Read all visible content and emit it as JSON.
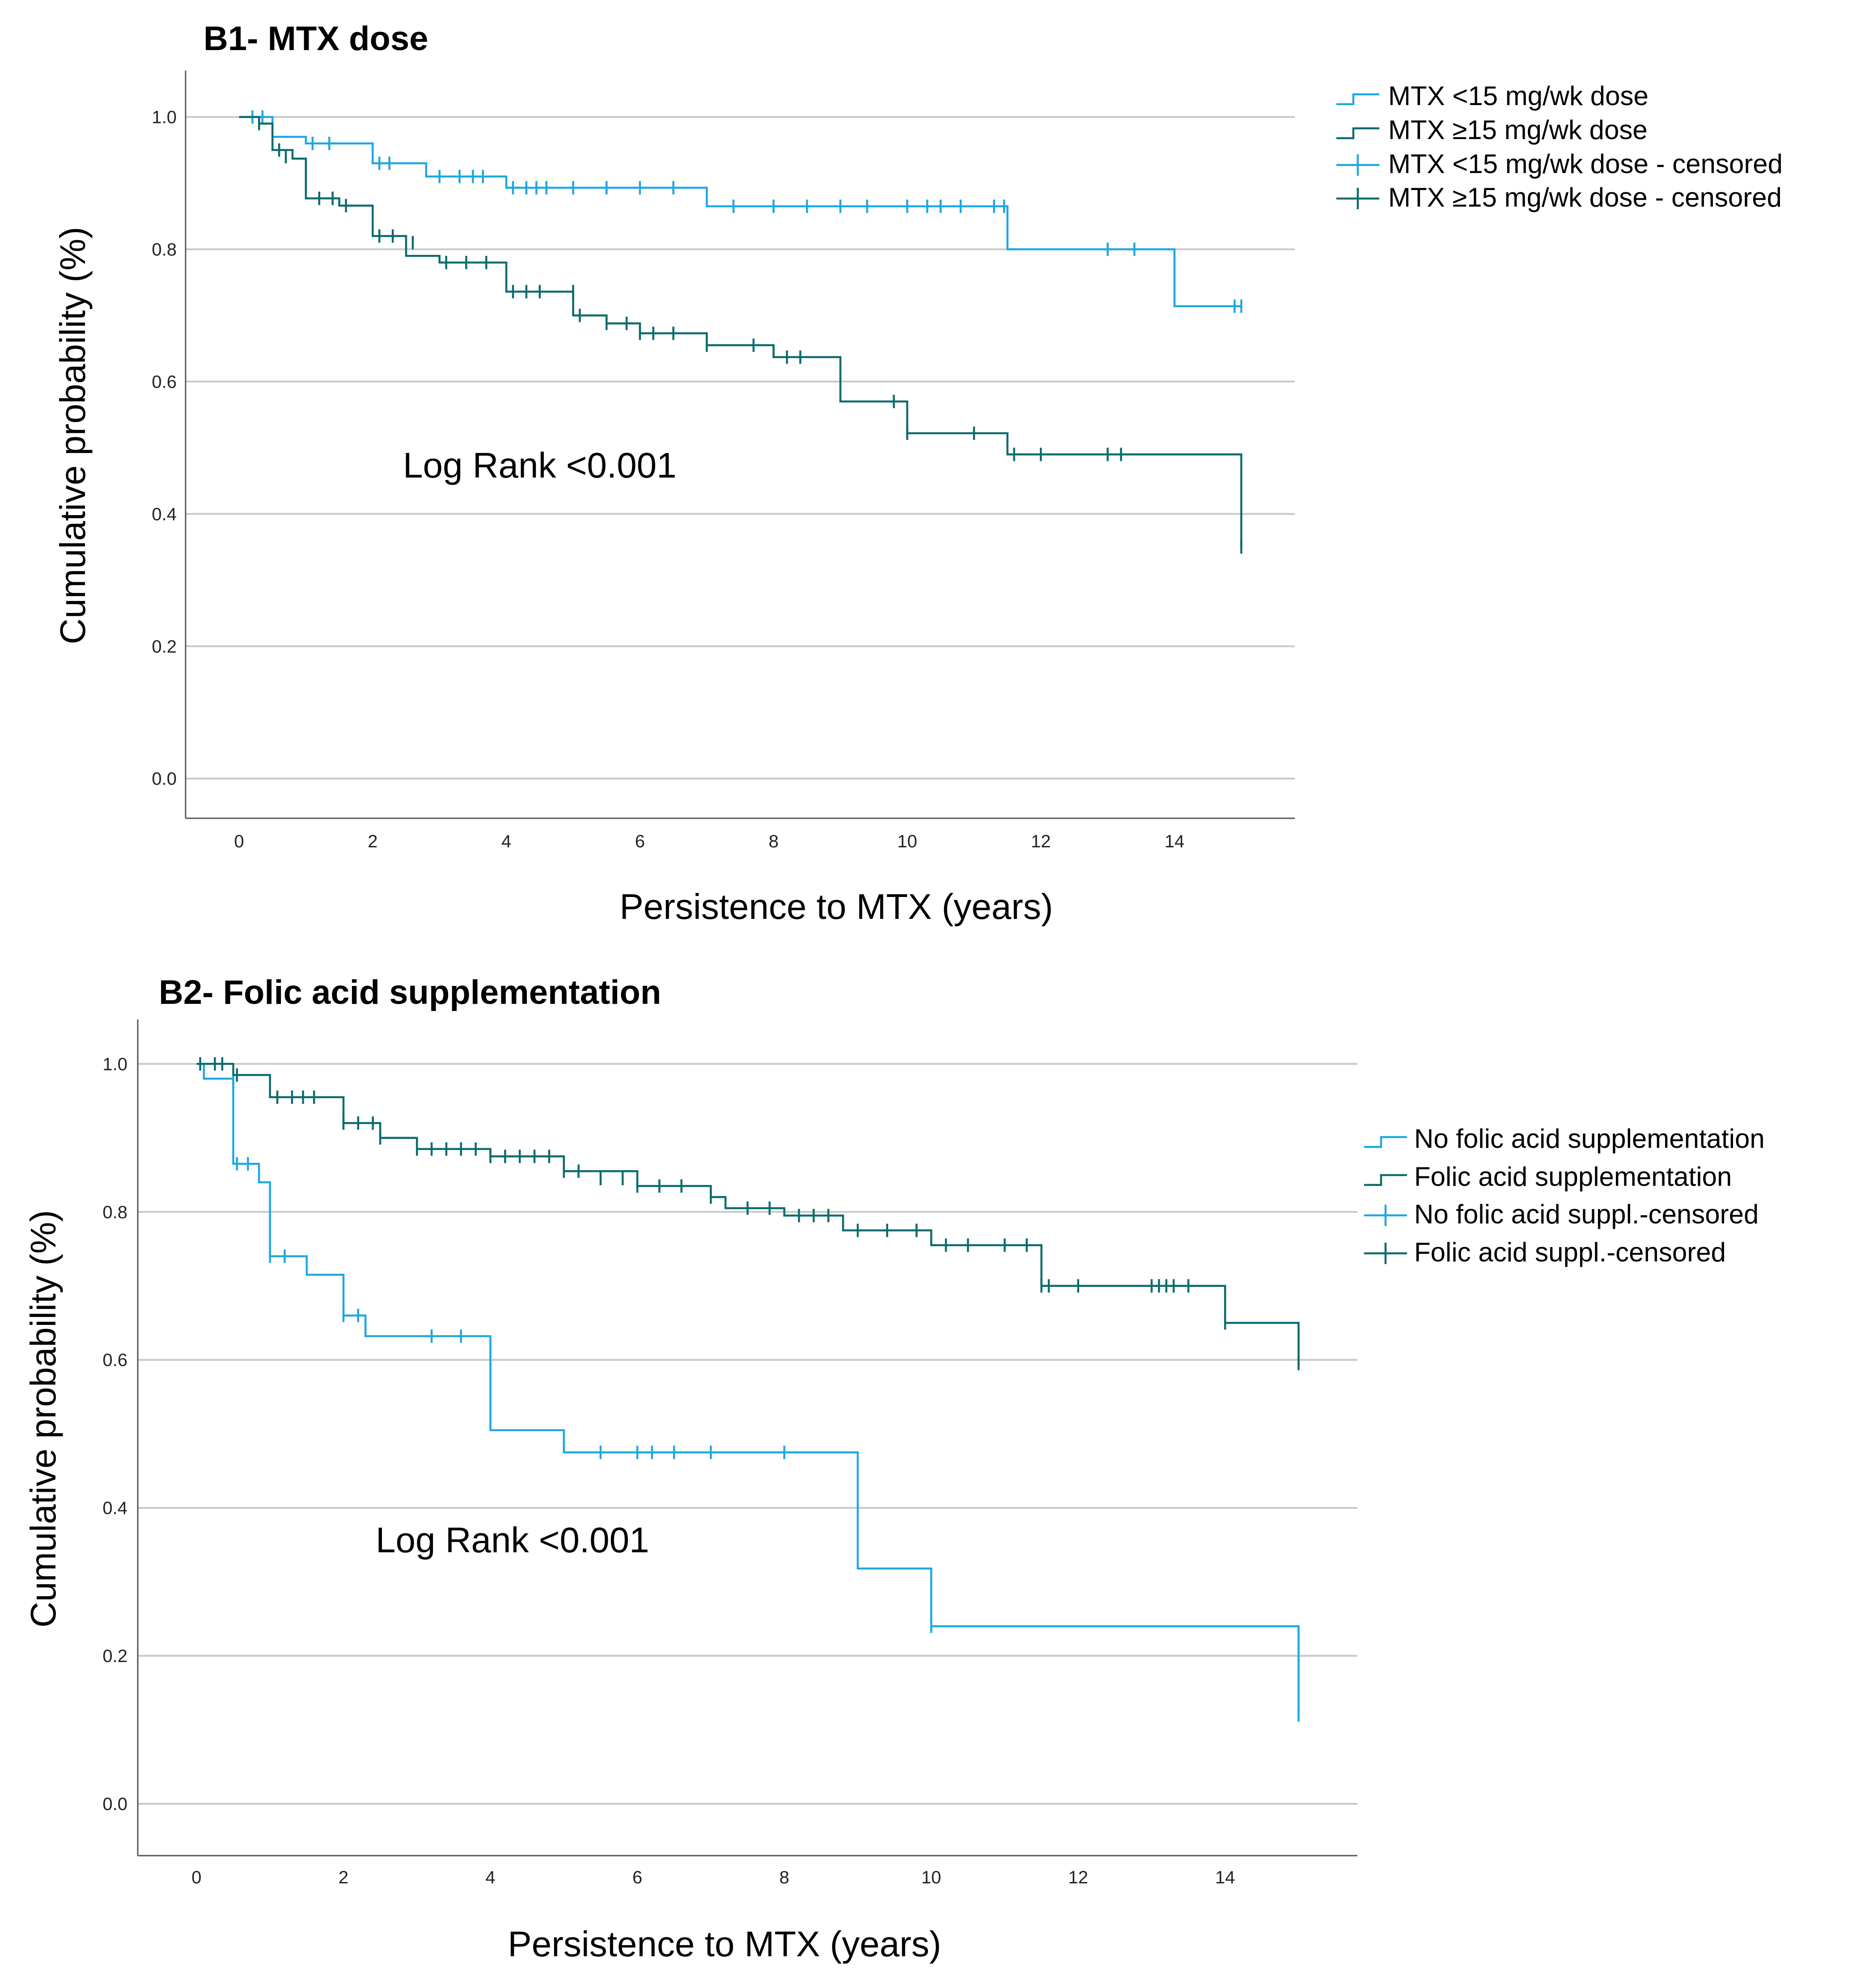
{
  "colors": {
    "series_light": "#1ea7e1",
    "series_dark": "#0b6b6e",
    "gridline": "#c8c8c8",
    "axis": "#555555"
  },
  "chart_data": [
    {
      "type": "line",
      "title": "B1- MTX dose",
      "xlabel": "Persistence to MTX (years)",
      "ylabel": "Cumulative probability (%)",
      "xlim": [
        -0.8,
        15.8
      ],
      "ylim": [
        -0.06,
        1.07
      ],
      "xticks": [
        0,
        2,
        4,
        6,
        8,
        10,
        12,
        14
      ],
      "xtick_labels": [
        "0",
        "2",
        "4",
        "6",
        "8",
        "10",
        "12",
        "14"
      ],
      "yticks": [
        0.0,
        0.2,
        0.4,
        0.6,
        0.8,
        1.0
      ],
      "ytick_labels": [
        "0.0",
        "0.2",
        "0.4",
        "0.6",
        "0.8",
        "1.0"
      ],
      "grid": true,
      "legend_position": "top-right outside",
      "annotation": {
        "text": "Log Rank <0.001",
        "x": 4.5,
        "y": 0.455
      },
      "legend": [
        {
          "label": "MTX <15 mg/wk dose",
          "kind": "line",
          "color": "#1ea7e1"
        },
        {
          "label": "MTX ≥15 mg/wk dose",
          "kind": "line",
          "color": "#0b6b6e"
        },
        {
          "label": "MTX <15 mg/wk dose - censored",
          "kind": "censor",
          "color": "#1ea7e1"
        },
        {
          "label": "MTX ≥15 mg/wk dose - censored",
          "kind": "censor",
          "color": "#0b6b6e"
        }
      ],
      "series": [
        {
          "name": "MTX <15 mg/wk dose",
          "color": "#1ea7e1",
          "steps": [
            [
              0,
              1.0
            ],
            [
              0.5,
              0.97
            ],
            [
              1.0,
              0.96
            ],
            [
              2.0,
              0.93
            ],
            [
              2.8,
              0.91
            ],
            [
              4.0,
              0.893
            ],
            [
              7.0,
              0.865
            ],
            [
              11.5,
              0.8
            ],
            [
              14.0,
              0.714
            ],
            [
              15.0,
              0.714
            ]
          ],
          "censored": [
            [
              0.2,
              1.0
            ],
            [
              0.35,
              1.0
            ],
            [
              1.1,
              0.96
            ],
            [
              1.35,
              0.96
            ],
            [
              2.1,
              0.93
            ],
            [
              2.25,
              0.93
            ],
            [
              3.0,
              0.91
            ],
            [
              3.3,
              0.91
            ],
            [
              3.5,
              0.91
            ],
            [
              3.65,
              0.91
            ],
            [
              4.1,
              0.893
            ],
            [
              4.3,
              0.893
            ],
            [
              4.45,
              0.893
            ],
            [
              4.6,
              0.893
            ],
            [
              5.0,
              0.893
            ],
            [
              5.5,
              0.893
            ],
            [
              6.0,
              0.893
            ],
            [
              6.5,
              0.893
            ],
            [
              7.4,
              0.865
            ],
            [
              8.0,
              0.865
            ],
            [
              8.5,
              0.865
            ],
            [
              9.0,
              0.865
            ],
            [
              9.4,
              0.865
            ],
            [
              10.0,
              0.865
            ],
            [
              10.3,
              0.865
            ],
            [
              10.5,
              0.865
            ],
            [
              10.8,
              0.865
            ],
            [
              11.3,
              0.865
            ],
            [
              11.45,
              0.865
            ],
            [
              13.0,
              0.8
            ],
            [
              13.4,
              0.8
            ],
            [
              14.9,
              0.714
            ],
            [
              15.0,
              0.714
            ]
          ]
        },
        {
          "name": "MTX ≥15 mg/wk dose",
          "color": "#0b6b6e",
          "steps": [
            [
              0,
              1.0
            ],
            [
              0.3,
              0.99
            ],
            [
              0.5,
              0.95
            ],
            [
              0.8,
              0.937
            ],
            [
              1.0,
              0.877
            ],
            [
              1.5,
              0.866
            ],
            [
              2.0,
              0.82
            ],
            [
              2.5,
              0.79
            ],
            [
              3.0,
              0.78
            ],
            [
              4.0,
              0.736
            ],
            [
              5.0,
              0.7
            ],
            [
              5.5,
              0.688
            ],
            [
              6.0,
              0.673
            ],
            [
              7.0,
              0.655
            ],
            [
              8.0,
              0.637
            ],
            [
              9.0,
              0.57
            ],
            [
              10.0,
              0.522
            ],
            [
              11.5,
              0.49
            ],
            [
              15.0,
              0.35
            ]
          ],
          "censored": [
            [
              0.3,
              0.99
            ],
            [
              0.6,
              0.95
            ],
            [
              0.7,
              0.94
            ],
            [
              1.2,
              0.877
            ],
            [
              1.4,
              0.877
            ],
            [
              1.6,
              0.866
            ],
            [
              2.1,
              0.82
            ],
            [
              2.3,
              0.82
            ],
            [
              2.6,
              0.81
            ],
            [
              3.1,
              0.78
            ],
            [
              3.4,
              0.78
            ],
            [
              3.7,
              0.78
            ],
            [
              4.1,
              0.736
            ],
            [
              4.3,
              0.736
            ],
            [
              4.5,
              0.736
            ],
            [
              5.0,
              0.736
            ],
            [
              5.1,
              0.7
            ],
            [
              5.5,
              0.688
            ],
            [
              5.8,
              0.688
            ],
            [
              6.0,
              0.673
            ],
            [
              6.2,
              0.673
            ],
            [
              6.5,
              0.673
            ],
            [
              7.0,
              0.655
            ],
            [
              7.7,
              0.655
            ],
            [
              8.2,
              0.637
            ],
            [
              8.4,
              0.637
            ],
            [
              9.8,
              0.57
            ],
            [
              10.0,
              0.522
            ],
            [
              11.0,
              0.522
            ],
            [
              11.6,
              0.49
            ],
            [
              12.0,
              0.49
            ],
            [
              13.0,
              0.49
            ],
            [
              13.2,
              0.49
            ],
            [
              15.0,
              0.35
            ]
          ]
        }
      ]
    },
    {
      "type": "line",
      "title": "B2- Folic acid supplementation",
      "xlabel": "Persistence to MTX (years)",
      "ylabel": "Cumulative probability (%)",
      "xlim": [
        -0.8,
        15.8
      ],
      "ylim": [
        -0.07,
        1.06
      ],
      "xticks": [
        0,
        2,
        4,
        6,
        8,
        10,
        12,
        14
      ],
      "xtick_labels": [
        "0",
        "2",
        "4",
        "6",
        "8",
        "10",
        "12",
        "14"
      ],
      "yticks": [
        0.0,
        0.2,
        0.4,
        0.6,
        0.8,
        1.0
      ],
      "ytick_labels": [
        "0.0",
        "0.2",
        "0.4",
        "0.6",
        "0.8",
        "1.0"
      ],
      "grid": true,
      "legend_position": "right outside",
      "annotation": {
        "text": "Log Rank <0.001",
        "x": 4.3,
        "y": 0.34
      },
      "legend": [
        {
          "label": "No folic acid supplementation",
          "kind": "line",
          "color": "#1ea7e1"
        },
        {
          "label": "Folic acid supplementation",
          "kind": "line",
          "color": "#0b6b6e"
        },
        {
          "label": "No folic acid suppl.-censored",
          "kind": "censor",
          "color": "#1ea7e1"
        },
        {
          "label": "Folic acid suppl.-censored",
          "kind": "censor",
          "color": "#0b6b6e"
        }
      ],
      "series": [
        {
          "name": "No folic acid supplementation",
          "color": "#1ea7e1",
          "steps": [
            [
              0,
              1.0
            ],
            [
              0.1,
              0.98
            ],
            [
              0.5,
              0.975
            ],
            [
              0.5,
              0.865
            ],
            [
              0.85,
              0.84
            ],
            [
              1.0,
              0.74
            ],
            [
              1.5,
              0.715
            ],
            [
              2.0,
              0.69
            ],
            [
              2.0,
              0.66
            ],
            [
              2.3,
              0.632
            ],
            [
              4.0,
              0.505
            ],
            [
              5.0,
              0.475
            ],
            [
              9.0,
              0.318
            ],
            [
              10.0,
              0.24
            ],
            [
              15.0,
              0.12
            ]
          ],
          "censored": [
            [
              0.5,
              0.975
            ],
            [
              0.55,
              0.865
            ],
            [
              0.7,
              0.865
            ],
            [
              1.0,
              0.74
            ],
            [
              1.2,
              0.74
            ],
            [
              2.0,
              0.66
            ],
            [
              2.2,
              0.66
            ],
            [
              3.2,
              0.632
            ],
            [
              3.6,
              0.632
            ],
            [
              5.5,
              0.475
            ],
            [
              6.0,
              0.475
            ],
            [
              6.2,
              0.475
            ],
            [
              6.5,
              0.475
            ],
            [
              7.0,
              0.475
            ],
            [
              8.0,
              0.475
            ],
            [
              10.0,
              0.24
            ],
            [
              15.0,
              0.12
            ]
          ]
        },
        {
          "name": "Folic acid supplementation",
          "color": "#0b6b6e",
          "steps": [
            [
              0,
              1.0
            ],
            [
              0.5,
              0.985
            ],
            [
              1.0,
              0.955
            ],
            [
              2.0,
              0.92
            ],
            [
              2.5,
              0.9
            ],
            [
              3.0,
              0.885
            ],
            [
              4.0,
              0.875
            ],
            [
              5.0,
              0.855
            ],
            [
              6.0,
              0.835
            ],
            [
              7.0,
              0.82
            ],
            [
              7.2,
              0.805
            ],
            [
              8.0,
              0.795
            ],
            [
              8.8,
              0.775
            ],
            [
              10.0,
              0.755
            ],
            [
              11.5,
              0.7
            ],
            [
              14.0,
              0.65
            ],
            [
              15.0,
              0.595
            ]
          ],
          "censored": [
            [
              0.05,
              1.0
            ],
            [
              0.25,
              1.0
            ],
            [
              0.35,
              1.0
            ],
            [
              0.55,
              0.985
            ],
            [
              1.1,
              0.955
            ],
            [
              1.3,
              0.955
            ],
            [
              1.45,
              0.955
            ],
            [
              1.6,
              0.955
            ],
            [
              2.0,
              0.92
            ],
            [
              2.2,
              0.92
            ],
            [
              2.4,
              0.92
            ],
            [
              2.5,
              0.9
            ],
            [
              3.0,
              0.885
            ],
            [
              3.2,
              0.885
            ],
            [
              3.4,
              0.885
            ],
            [
              3.6,
              0.885
            ],
            [
              3.8,
              0.885
            ],
            [
              4.0,
              0.875
            ],
            [
              4.2,
              0.875
            ],
            [
              4.4,
              0.875
            ],
            [
              4.6,
              0.875
            ],
            [
              4.8,
              0.875
            ],
            [
              5.0,
              0.855
            ],
            [
              5.2,
              0.855
            ],
            [
              5.5,
              0.845
            ],
            [
              5.8,
              0.845
            ],
            [
              6.0,
              0.835
            ],
            [
              6.3,
              0.835
            ],
            [
              6.6,
              0.835
            ],
            [
              7.0,
              0.82
            ],
            [
              7.5,
              0.805
            ],
            [
              7.8,
              0.805
            ],
            [
              8.2,
              0.795
            ],
            [
              8.4,
              0.795
            ],
            [
              8.6,
              0.795
            ],
            [
              9.0,
              0.775
            ],
            [
              9.4,
              0.775
            ],
            [
              9.8,
              0.775
            ],
            [
              10.2,
              0.755
            ],
            [
              10.5,
              0.755
            ],
            [
              11.0,
              0.755
            ],
            [
              11.3,
              0.755
            ],
            [
              11.5,
              0.7
            ],
            [
              11.6,
              0.7
            ],
            [
              12.0,
              0.7
            ],
            [
              13.0,
              0.7
            ],
            [
              13.1,
              0.7
            ],
            [
              13.2,
              0.7
            ],
            [
              13.3,
              0.7
            ],
            [
              13.5,
              0.7
            ],
            [
              14.0,
              0.65
            ],
            [
              15.0,
              0.595
            ]
          ]
        }
      ]
    }
  ]
}
